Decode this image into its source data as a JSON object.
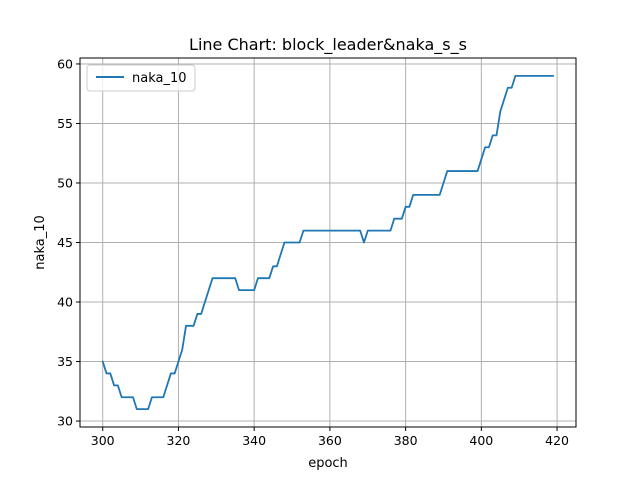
{
  "chart_data": {
    "type": "line",
    "title": "Line Chart: block_leader&naka_s_s",
    "xlabel": "epoch",
    "ylabel": "naka_10",
    "xlim": [
      294,
      425
    ],
    "ylim": [
      29.5,
      60.5
    ],
    "xticks": [
      300,
      320,
      340,
      360,
      380,
      400,
      420
    ],
    "yticks": [
      30,
      35,
      40,
      45,
      50,
      55,
      60
    ],
    "grid": true,
    "legend_position": "top-left",
    "colors": {
      "line": "#1f77b4",
      "grid": "#b0b0b0"
    },
    "series": [
      {
        "name": "naka_10",
        "x": [
          300,
          301,
          302,
          303,
          304,
          305,
          306,
          307,
          308,
          309,
          310,
          311,
          312,
          313,
          314,
          315,
          316,
          317,
          318,
          319,
          320,
          321,
          322,
          323,
          324,
          325,
          326,
          327,
          328,
          329,
          330,
          331,
          332,
          333,
          334,
          335,
          336,
          337,
          338,
          339,
          340,
          341,
          342,
          343,
          344,
          345,
          346,
          347,
          348,
          349,
          350,
          351,
          352,
          353,
          354,
          355,
          356,
          357,
          358,
          359,
          360,
          361,
          362,
          363,
          364,
          365,
          366,
          367,
          368,
          369,
          370,
          371,
          372,
          373,
          374,
          375,
          376,
          377,
          378,
          379,
          380,
          381,
          382,
          383,
          384,
          385,
          386,
          387,
          388,
          389,
          390,
          391,
          392,
          393,
          394,
          395,
          396,
          397,
          398,
          399,
          400,
          401,
          402,
          403,
          404,
          405,
          406,
          407,
          408,
          409,
          410,
          411,
          412,
          413,
          414,
          415,
          416,
          417,
          418,
          419
        ],
        "values": [
          35,
          34,
          34,
          33,
          33,
          32,
          32,
          32,
          32,
          31,
          31,
          31,
          31,
          32,
          32,
          32,
          32,
          33,
          34,
          34,
          35,
          36,
          38,
          38,
          38,
          39,
          39,
          40,
          41,
          42,
          42,
          42,
          42,
          42,
          42,
          42,
          41,
          41,
          41,
          41,
          41,
          42,
          42,
          42,
          42,
          43,
          43,
          44,
          45,
          45,
          45,
          45,
          45,
          46,
          46,
          46,
          46,
          46,
          46,
          46,
          46,
          46,
          46,
          46,
          46,
          46,
          46,
          46,
          46,
          45,
          46,
          46,
          46,
          46,
          46,
          46,
          46,
          47,
          47,
          47,
          48,
          48,
          49,
          49,
          49,
          49,
          49,
          49,
          49,
          49,
          50,
          51,
          51,
          51,
          51,
          51,
          51,
          51,
          51,
          51,
          52,
          53,
          53,
          54,
          54,
          56,
          57,
          58,
          58,
          59,
          59,
          59,
          59,
          59,
          59,
          59,
          59,
          59,
          59,
          59
        ]
      }
    ]
  }
}
